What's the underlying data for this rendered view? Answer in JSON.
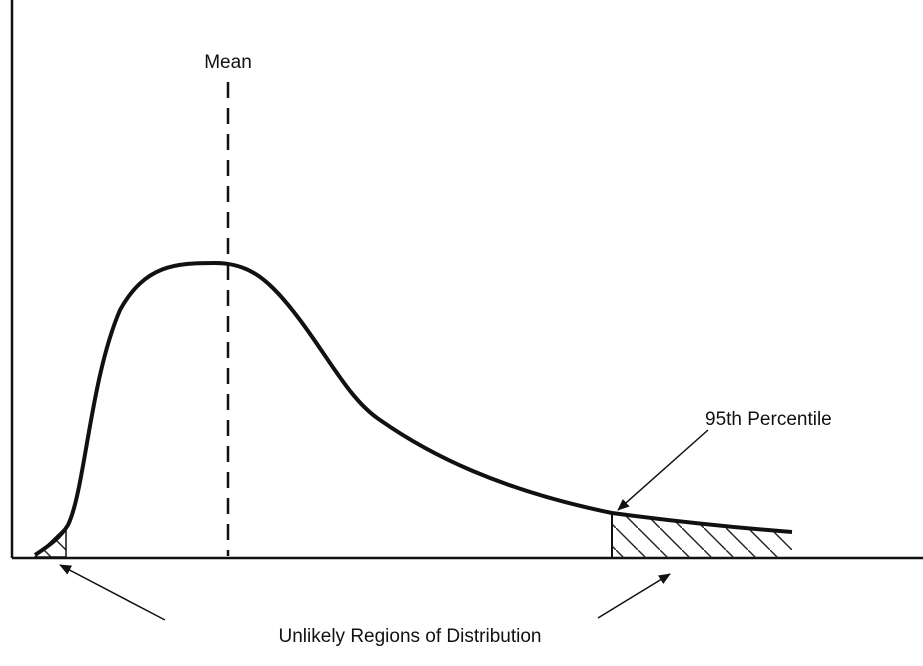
{
  "labels": {
    "mean": "Mean",
    "percentile": "95th Percentile",
    "regions": "Unlikely Regions of Distribution"
  }
}
